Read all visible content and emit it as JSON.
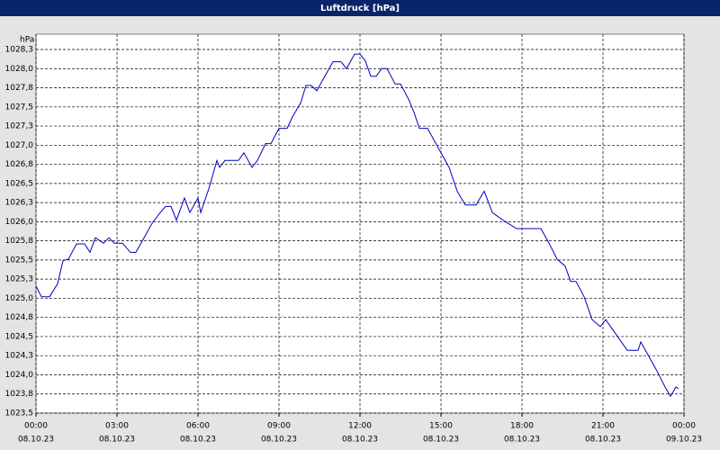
{
  "chart_data": {
    "type": "line",
    "title": "Luftdruck [hPa]",
    "y_label": "hPa",
    "x": [
      0,
      0.2,
      0.5,
      0.8,
      1.0,
      1.2,
      1.5,
      1.8,
      2.0,
      2.2,
      2.5,
      2.7,
      2.9,
      3.2,
      3.5,
      3.7,
      4.0,
      4.3,
      4.6,
      4.8,
      5.0,
      5.2,
      5.5,
      5.7,
      6.0,
      6.1,
      6.4,
      6.7,
      6.8,
      7.0,
      7.5,
      7.7,
      8.0,
      8.2,
      8.5,
      8.7,
      9.0,
      9.3,
      9.5,
      9.8,
      10.0,
      10.2,
      10.4,
      10.6,
      11.0,
      11.3,
      11.5,
      11.8,
      12.0,
      12.2,
      12.4,
      12.6,
      12.8,
      13.0,
      13.3,
      13.5,
      13.8,
      14.0,
      14.2,
      14.5,
      15.0,
      15.3,
      15.6,
      15.9,
      16.3,
      16.6,
      16.9,
      17.3,
      17.8,
      18.0,
      18.7,
      19.0,
      19.3,
      19.6,
      19.8,
      20.0,
      20.3,
      20.6,
      20.9,
      21.1,
      21.5,
      21.9,
      22.3,
      22.4,
      22.7,
      23.0,
      23.3,
      23.5,
      23.7,
      23.8
    ],
    "series": [
      {
        "name": "Luftdruck",
        "color": "#0000c0",
        "values": [
          1025.16,
          1025.02,
          1025.02,
          1025.19,
          1025.49,
          1025.51,
          1025.71,
          1025.71,
          1025.6,
          1025.79,
          1025.72,
          1025.79,
          1025.72,
          1025.72,
          1025.6,
          1025.6,
          1025.79,
          1025.98,
          1026.12,
          1026.2,
          1026.2,
          1026.02,
          1026.31,
          1026.12,
          1026.31,
          1026.12,
          1026.43,
          1026.8,
          1026.71,
          1026.8,
          1026.8,
          1026.9,
          1026.71,
          1026.8,
          1027.02,
          1027.02,
          1027.22,
          1027.22,
          1027.37,
          1027.55,
          1027.78,
          1027.78,
          1027.71,
          1027.84,
          1028.09,
          1028.09,
          1028.0,
          1028.19,
          1028.19,
          1028.1,
          1027.9,
          1027.9,
          1028.0,
          1028.0,
          1027.8,
          1027.8,
          1027.6,
          1027.43,
          1027.22,
          1027.22,
          1026.9,
          1026.71,
          1026.4,
          1026.22,
          1026.22,
          1026.4,
          1026.12,
          1026.02,
          1025.91,
          1025.91,
          1025.91,
          1025.72,
          1025.51,
          1025.42,
          1025.22,
          1025.22,
          1025.02,
          1024.72,
          1024.63,
          1024.72,
          1024.52,
          1024.32,
          1024.32,
          1024.43,
          1024.24,
          1024.05,
          1023.84,
          1023.72,
          1023.84,
          1023.82
        ]
      }
    ],
    "xlim": [
      0,
      24
    ],
    "xticks": [
      {
        "value": 0,
        "label": "00:00"
      },
      {
        "value": 3,
        "label": "03:00"
      },
      {
        "value": 6,
        "label": "06:00"
      },
      {
        "value": 9,
        "label": "09:00"
      },
      {
        "value": 12,
        "label": "12:00"
      },
      {
        "value": 15,
        "label": "15:00"
      },
      {
        "value": 18,
        "label": "18:00"
      },
      {
        "value": 21,
        "label": "21:00"
      },
      {
        "value": 24,
        "label": "00:00"
      }
    ],
    "xtick_dates": [
      "08.10.23",
      "08.10.23",
      "08.10.23",
      "08.10.23",
      "08.10.23",
      "08.10.23",
      "08.10.23",
      "08.10.23",
      "09.10.23"
    ],
    "ylim": [
      1023.5,
      1028.45
    ],
    "yticks": [
      {
        "value": 1023.5,
        "label": "1023,5"
      },
      {
        "value": 1023.75,
        "label": "1023,8"
      },
      {
        "value": 1024.0,
        "label": "1024,0"
      },
      {
        "value": 1024.25,
        "label": "1024,3"
      },
      {
        "value": 1024.5,
        "label": "1024,5"
      },
      {
        "value": 1024.75,
        "label": "1024,8"
      },
      {
        "value": 1025.0,
        "label": "1025,0"
      },
      {
        "value": 1025.25,
        "label": "1025,3"
      },
      {
        "value": 1025.5,
        "label": "1025,5"
      },
      {
        "value": 1025.75,
        "label": "1025,8"
      },
      {
        "value": 1026.0,
        "label": "1026,0"
      },
      {
        "value": 1026.25,
        "label": "1026,3"
      },
      {
        "value": 1026.5,
        "label": "1026,5"
      },
      {
        "value": 1026.75,
        "label": "1026,8"
      },
      {
        "value": 1027.0,
        "label": "1027,0"
      },
      {
        "value": 1027.25,
        "label": "1027,3"
      },
      {
        "value": 1027.5,
        "label": "1027,5"
      },
      {
        "value": 1027.75,
        "label": "1027,8"
      },
      {
        "value": 1028.0,
        "label": "1028,0"
      },
      {
        "value": 1028.25,
        "label": "1028,3"
      }
    ],
    "grid": true
  }
}
